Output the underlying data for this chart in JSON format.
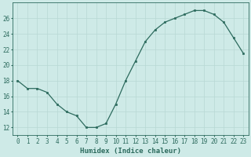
{
  "x": [
    0,
    1,
    2,
    3,
    4,
    5,
    6,
    7,
    8,
    9,
    10,
    11,
    12,
    13,
    14,
    15,
    16,
    17,
    18,
    19,
    20,
    21,
    22,
    23
  ],
  "y": [
    18,
    17,
    17,
    16.5,
    15,
    14,
    13.5,
    12,
    12,
    12.5,
    15,
    18,
    20.5,
    23,
    24.5,
    25.5,
    26,
    26.5,
    27,
    27,
    26.5,
    25.5,
    23.5,
    21.5
  ],
  "line_color": "#2d6b5e",
  "marker_color": "#2d6b5e",
  "bg_color": "#ceeae7",
  "grid_color": "#b8d8d4",
  "xlabel": "Humidex (Indice chaleur)",
  "ylim": [
    11,
    28
  ],
  "xlim": [
    -0.5,
    23.5
  ],
  "yticks": [
    12,
    14,
    16,
    18,
    20,
    22,
    24,
    26
  ],
  "xtick_labels": [
    "0",
    "1",
    "2",
    "3",
    "4",
    "5",
    "6",
    "7",
    "8",
    "9",
    "10",
    "11",
    "12",
    "13",
    "14",
    "15",
    "16",
    "17",
    "18",
    "19",
    "20",
    "21",
    "22",
    "23"
  ],
  "xlabel_color": "#2d6b5e",
  "tick_color": "#2d6b5e",
  "tick_fontsize": 5.5,
  "xlabel_fontsize": 6.5
}
